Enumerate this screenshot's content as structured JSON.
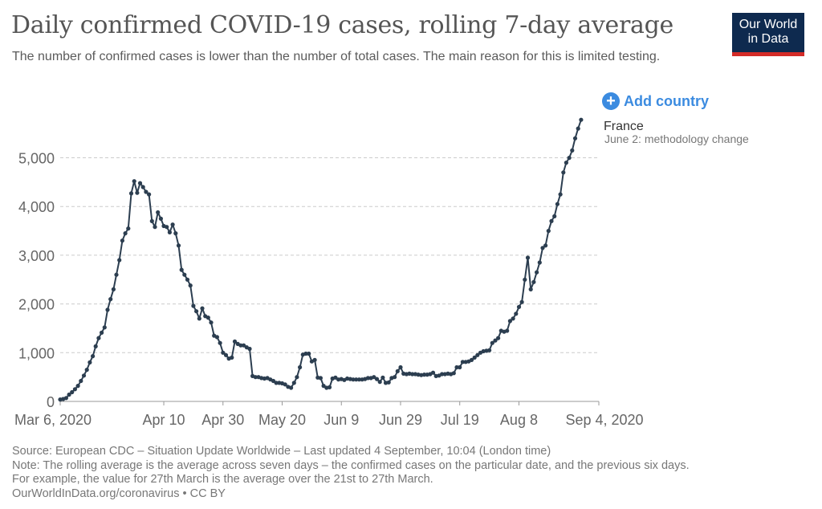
{
  "header": {
    "title": "Daily confirmed COVID-19 cases, rolling 7-day average",
    "subtitle": "The number of confirmed cases is lower than the number of total cases. The main reason for this is limited testing.",
    "logo_line1": "Our World",
    "logo_line2": "in Data"
  },
  "controls": {
    "add_country_label": "Add country"
  },
  "colors": {
    "line": "#2c3e50",
    "grid": "#cccccc",
    "accent": "#3b8be0",
    "logo_bg": "#0e2a4f",
    "logo_bar": "#d42b27"
  },
  "chart_data": {
    "type": "line",
    "title": "Daily confirmed COVID-19 cases, rolling 7-day average",
    "xlabel": "",
    "ylabel": "",
    "x_tick_labels": [
      "Mar 6, 2020",
      "Apr 10",
      "Apr 30",
      "May 20",
      "Jun 9",
      "Jun 29",
      "Jul 19",
      "Aug 8",
      "Sep 4, 2020"
    ],
    "x_tick_days": [
      0,
      35,
      55,
      75,
      95,
      115,
      135,
      155,
      182
    ],
    "y_ticks": [
      0,
      1000,
      2000,
      3000,
      4000,
      5000
    ],
    "y_tick_labels": [
      "0",
      "1,000",
      "2,000",
      "3,000",
      "4,000",
      "5,000"
    ],
    "ylim": [
      0,
      5800
    ],
    "xlim": [
      "2020-03-06",
      "2020-09-04"
    ],
    "grid": true,
    "series": [
      {
        "name": "France",
        "annotation": "June 2: methodology change",
        "values": [
          40,
          50,
          70,
          140,
          190,
          250,
          320,
          420,
          530,
          650,
          800,
          930,
          1130,
          1300,
          1410,
          1520,
          1880,
          2100,
          2300,
          2600,
          2900,
          3300,
          3450,
          3550,
          4270,
          4520,
          4280,
          4480,
          4400,
          4300,
          4250,
          3700,
          3580,
          3880,
          3750,
          3600,
          3580,
          3470,
          3630,
          3450,
          3200,
          2700,
          2600,
          2500,
          2380,
          1960,
          1850,
          1700,
          1910,
          1750,
          1720,
          1620,
          1350,
          1320,
          1200,
          1000,
          950,
          880,
          900,
          1230,
          1180,
          1150,
          1150,
          1110,
          1080,
          520,
          500,
          500,
          480,
          470,
          480,
          450,
          420,
          380,
          380,
          370,
          350,
          300,
          280,
          380,
          500,
          700,
          960,
          980,
          980,
          820,
          850,
          490,
          480,
          320,
          280,
          290,
          470,
          490,
          450,
          460,
          440,
          470,
          460,
          450,
          450,
          450,
          450,
          460,
          480,
          480,
          500,
          460,
          400,
          490,
          380,
          390,
          480,
          500,
          620,
          700,
          570,
          560,
          570,
          560,
          560,
          550,
          540,
          550,
          550,
          560,
          590,
          520,
          530,
          560,
          560,
          570,
          560,
          580,
          700,
          700,
          810,
          810,
          820,
          850,
          900,
          950,
          1000,
          1030,
          1040,
          1050,
          1200,
          1250,
          1300,
          1450,
          1430,
          1450,
          1650,
          1700,
          1800,
          1940,
          2040,
          2500,
          2950,
          2300,
          2450,
          2650,
          2850,
          3150,
          3200,
          3500,
          3700,
          3800,
          4050,
          4250,
          4700,
          4900,
          5000,
          5150,
          5400,
          5600,
          5780
        ]
      }
    ]
  },
  "footer": {
    "source": "Source: European CDC – Situation Update Worldwide – Last updated 4 September, 10:04 (London time)",
    "note1": "Note: The rolling average is the average across seven days – the confirmed cases on the particular date, and the previous six days.",
    "note2": "For example, the value for 27th March is the average over the 21st to 27th March.",
    "url": "OurWorldInData.org/coronavirus • CC BY"
  }
}
